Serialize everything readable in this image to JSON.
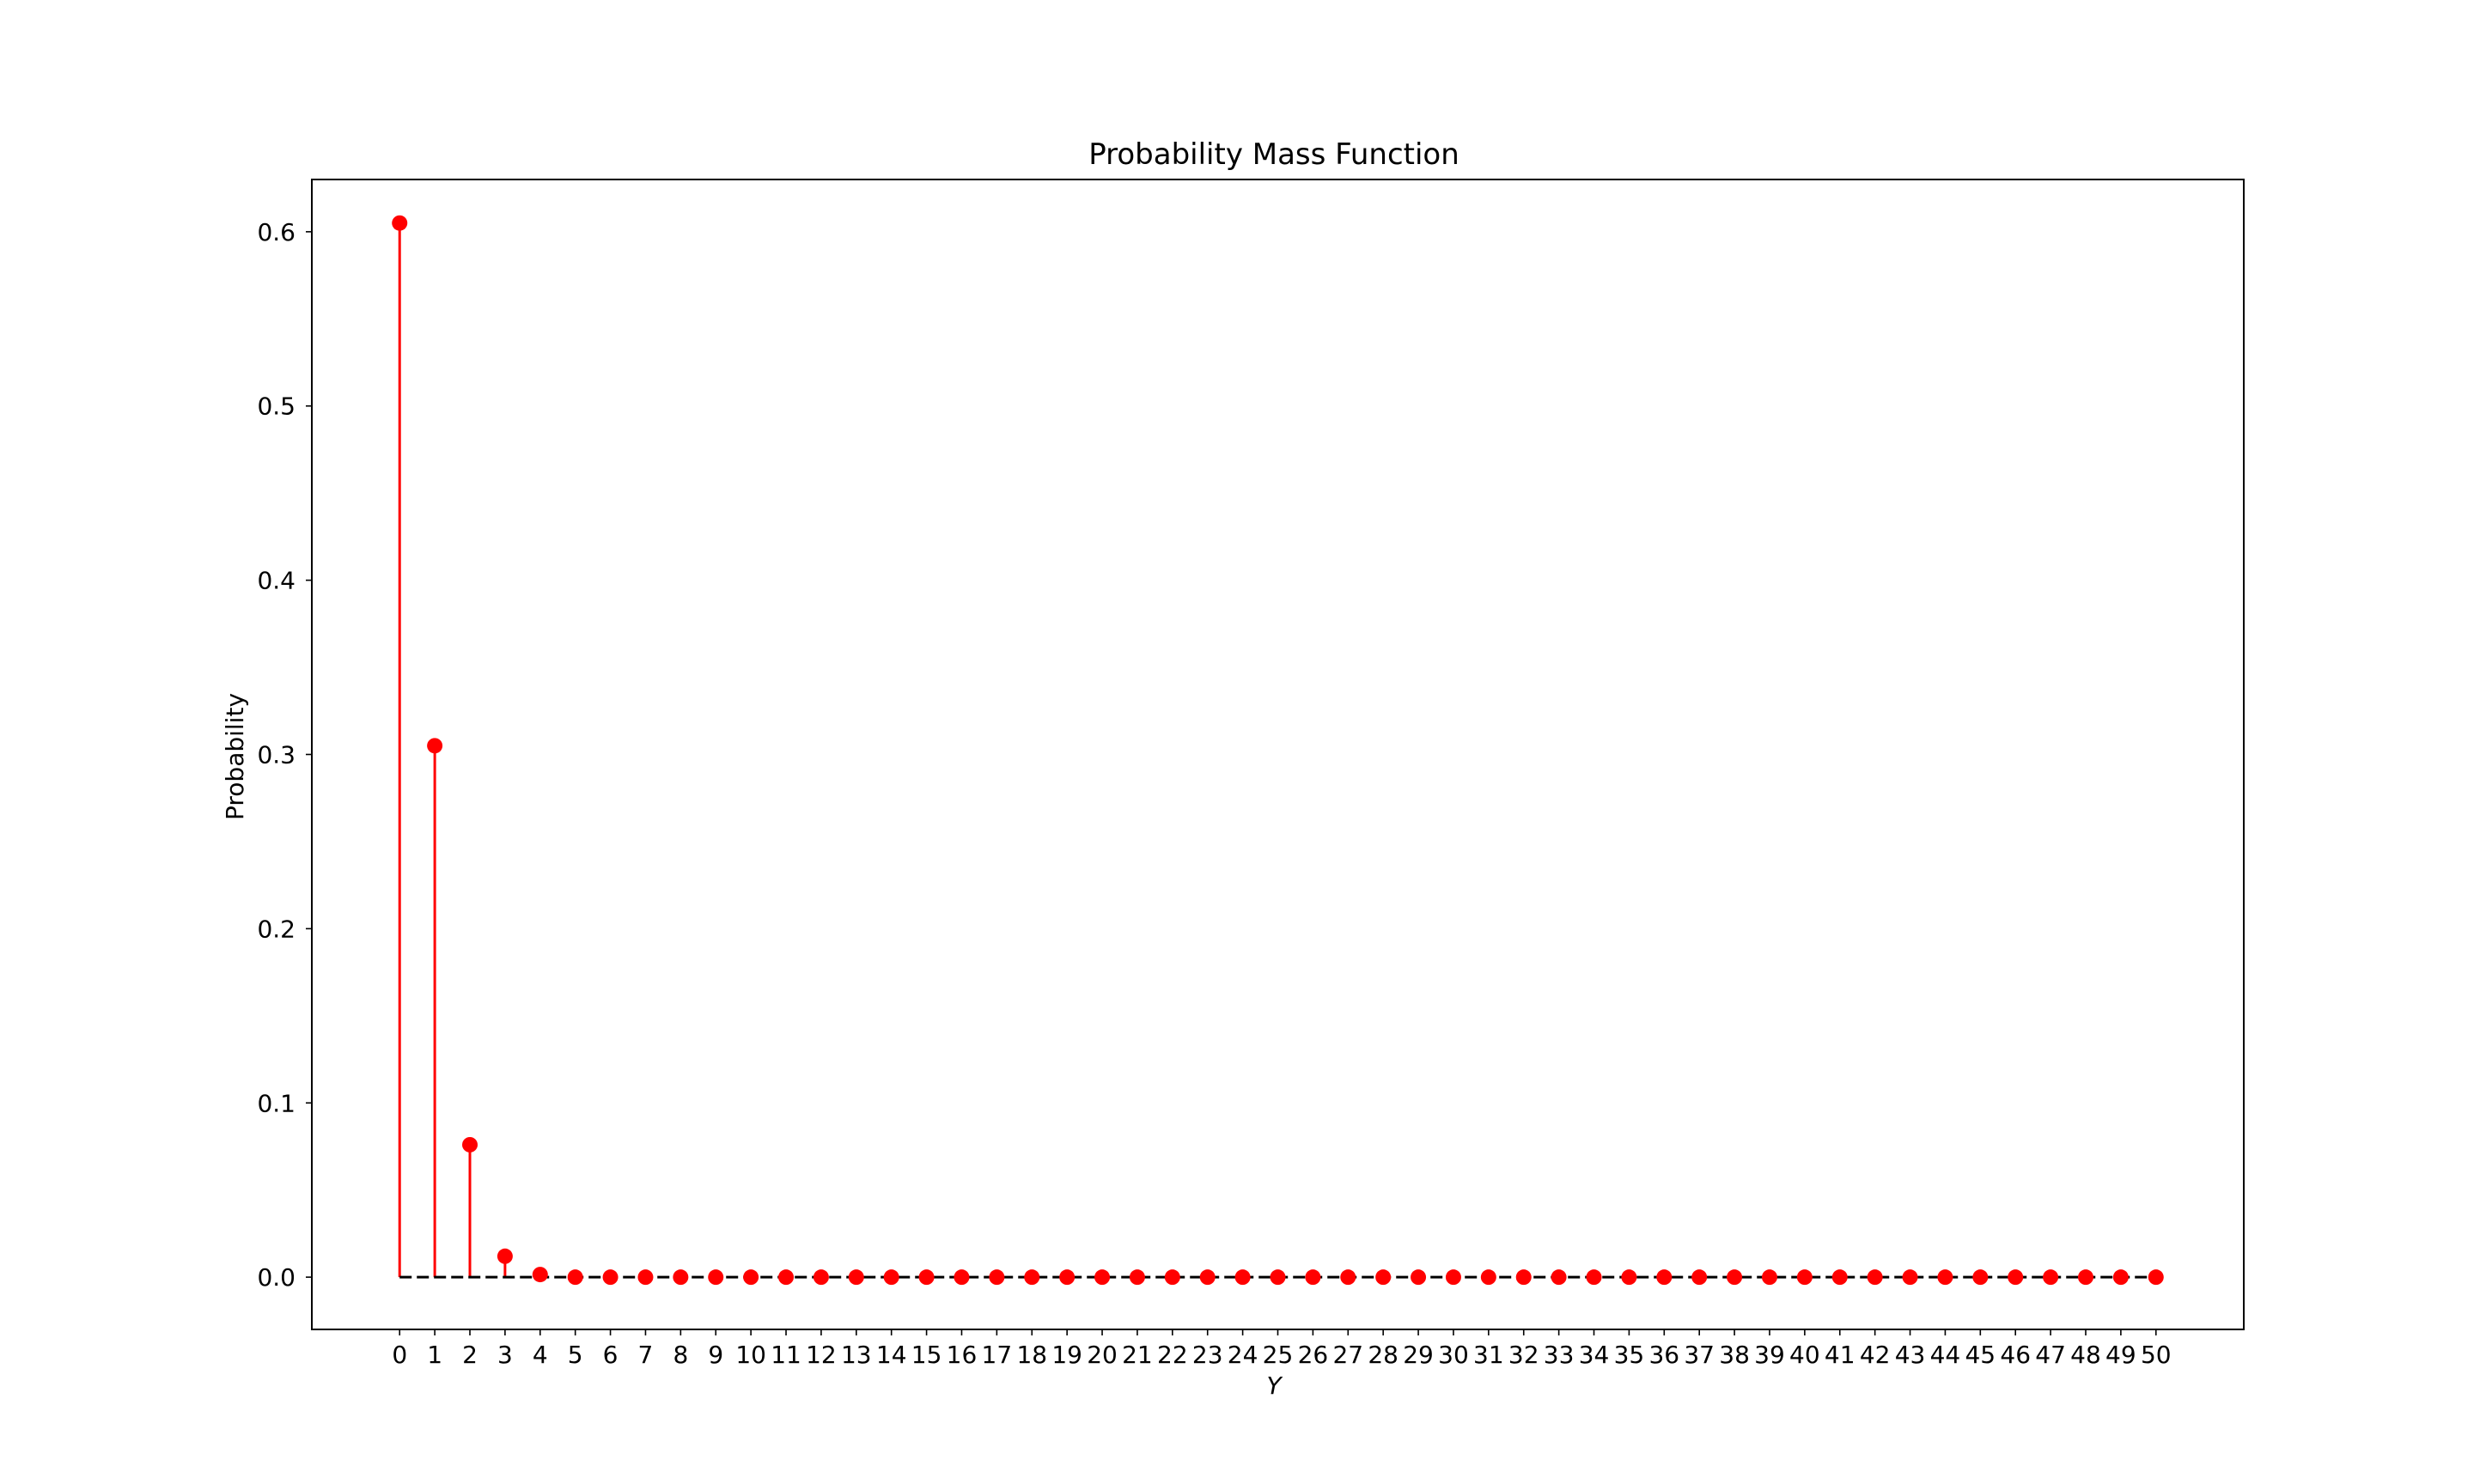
{
  "chart_data": {
    "type": "stem",
    "title": "Probability Mass Function",
    "xlabel": "Y",
    "ylabel": "Probability",
    "x": [
      0,
      1,
      2,
      3,
      4,
      5,
      6,
      7,
      8,
      9,
      10,
      11,
      12,
      13,
      14,
      15,
      16,
      17,
      18,
      19,
      20,
      21,
      22,
      23,
      24,
      25,
      26,
      27,
      28,
      29,
      30,
      31,
      32,
      33,
      34,
      35,
      36,
      37,
      38,
      39,
      40,
      41,
      42,
      43,
      44,
      45,
      46,
      47,
      48,
      49,
      50
    ],
    "values": [
      0.605,
      0.305,
      0.076,
      0.012,
      0.0015,
      0,
      0,
      0,
      0,
      0,
      0,
      0,
      0,
      0,
      0,
      0,
      0,
      0,
      0,
      0,
      0,
      0,
      0,
      0,
      0,
      0,
      0,
      0,
      0,
      0,
      0,
      0,
      0,
      0,
      0,
      0,
      0,
      0,
      0,
      0,
      0,
      0,
      0,
      0,
      0,
      0,
      0,
      0,
      0,
      0,
      0
    ],
    "xticks": [
      "0",
      "1",
      "2",
      "3",
      "4",
      "5",
      "6",
      "7",
      "8",
      "9",
      "10",
      "11",
      "12",
      "13",
      "14",
      "15",
      "16",
      "17",
      "18",
      "19",
      "20",
      "21",
      "22",
      "23",
      "24",
      "25",
      "26",
      "27",
      "28",
      "29",
      "30",
      "31",
      "32",
      "33",
      "34",
      "35",
      "36",
      "37",
      "38",
      "39",
      "40",
      "41",
      "42",
      "43",
      "44",
      "45",
      "46",
      "47",
      "48",
      "49",
      "50"
    ],
    "yticks": [
      "0.0",
      "0.1",
      "0.2",
      "0.3",
      "0.4",
      "0.5",
      "0.6"
    ],
    "ytick_values": [
      0.0,
      0.1,
      0.2,
      0.3,
      0.4,
      0.5,
      0.6
    ],
    "xlim": [
      -2.5,
      52.5
    ],
    "ylim": [
      -0.03,
      0.63
    ],
    "grid": false,
    "legend": "none",
    "colors": {
      "stem": "#ff0000",
      "marker": "#ff0000",
      "baseline": "#000000"
    }
  }
}
